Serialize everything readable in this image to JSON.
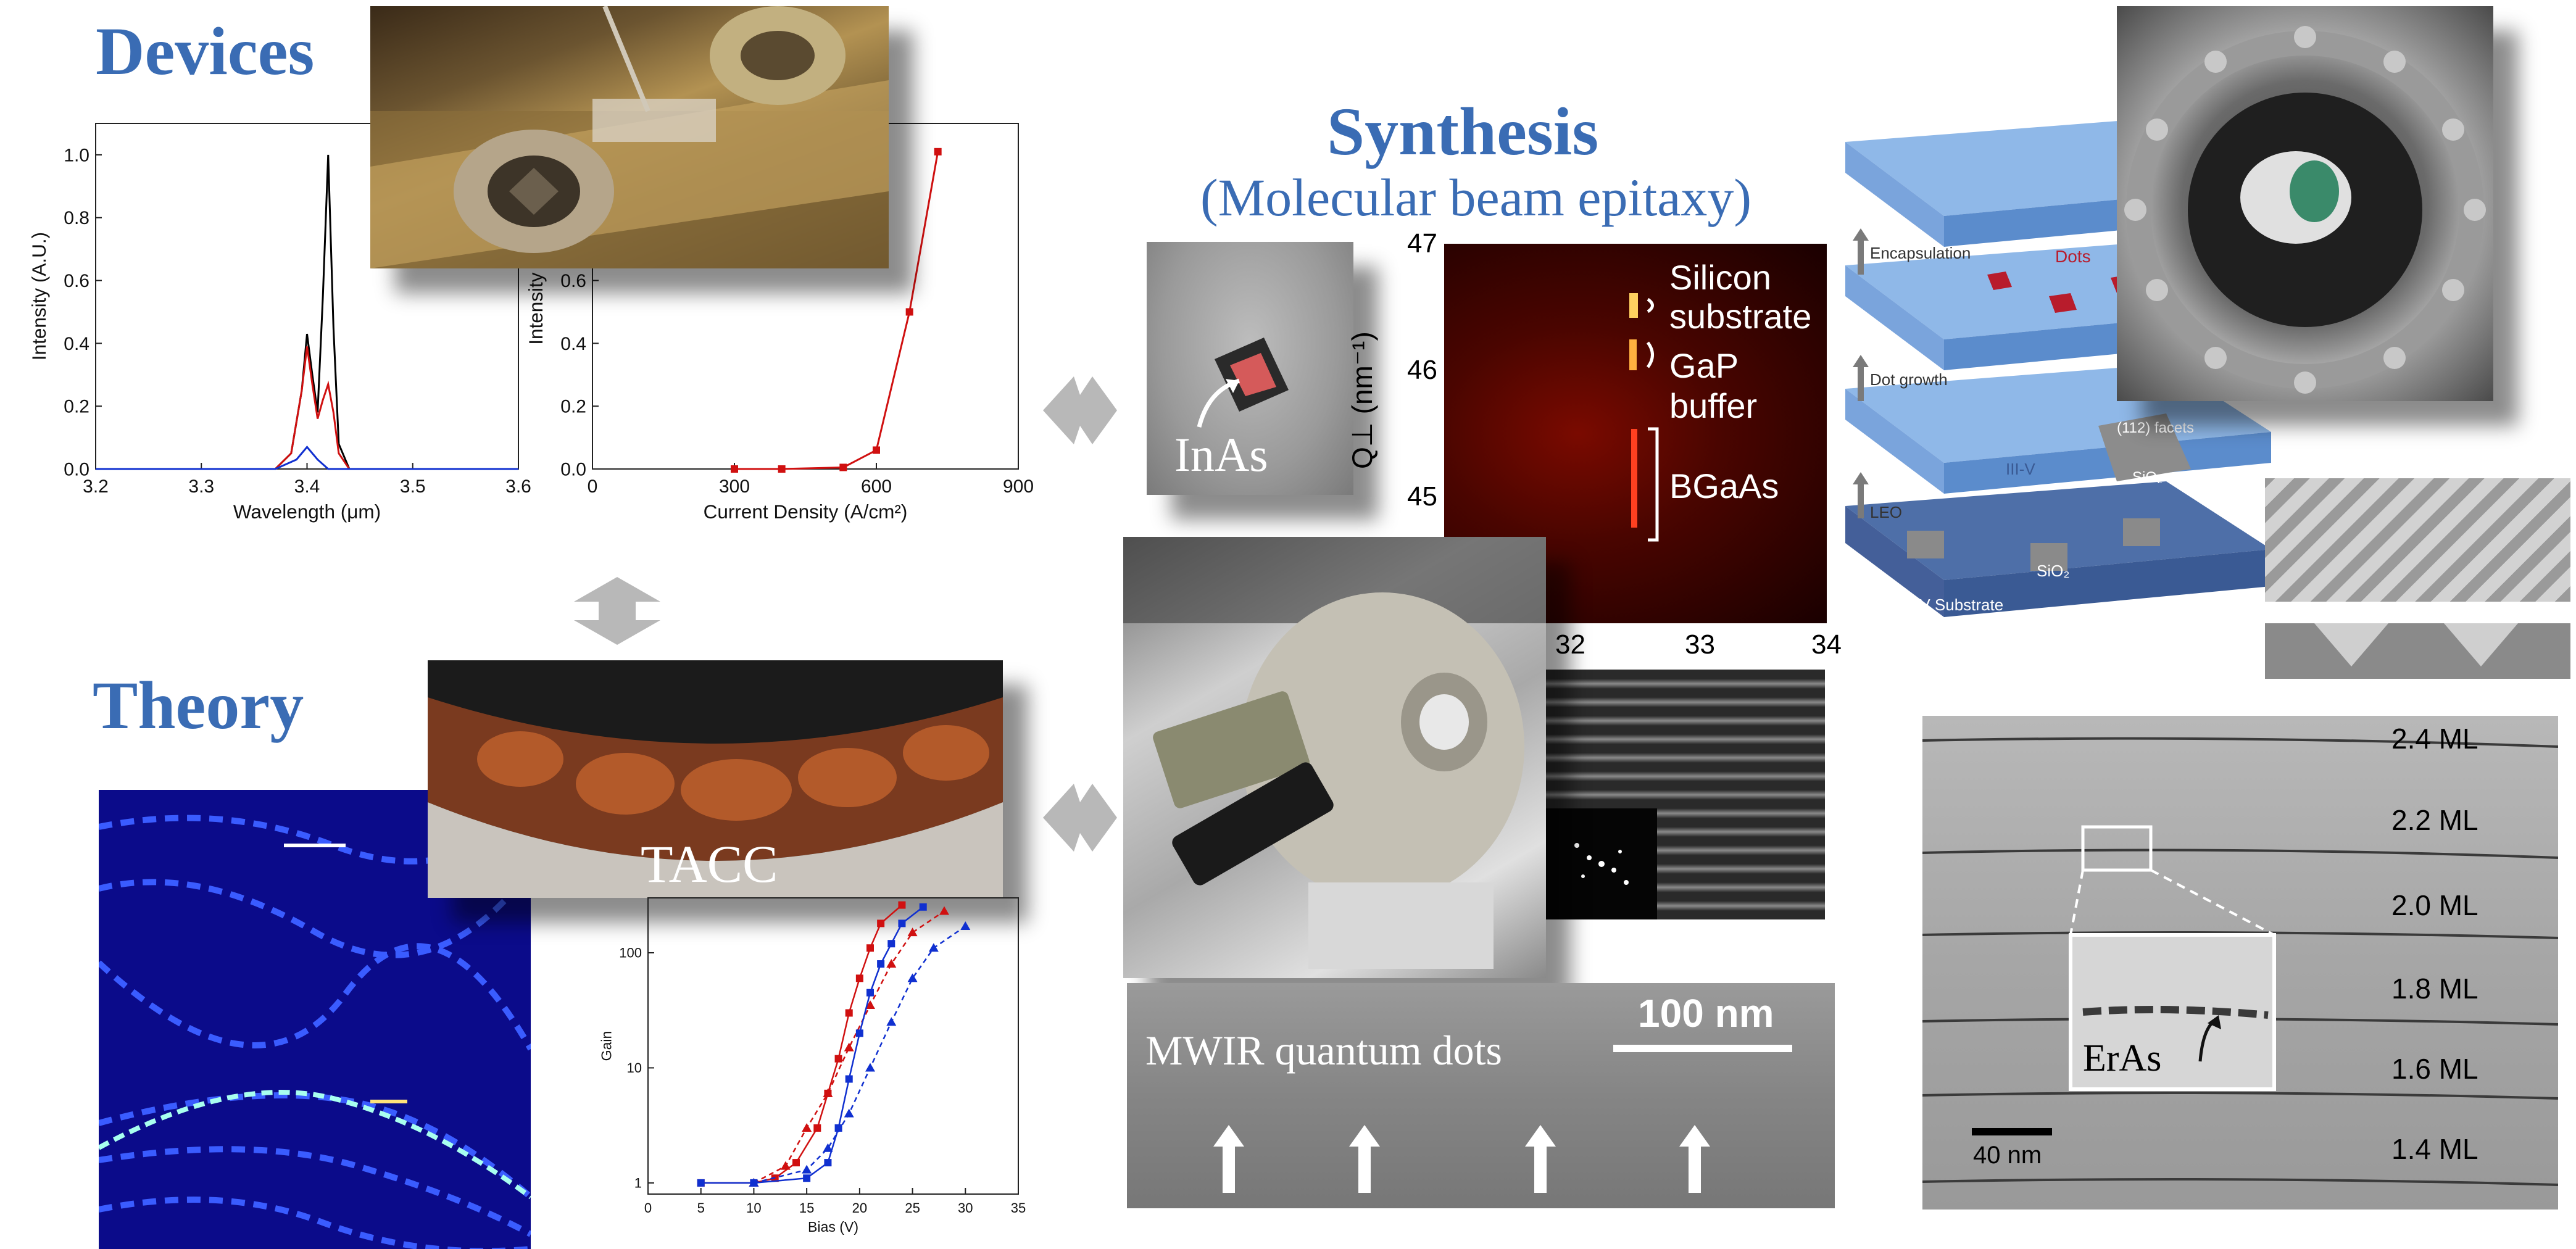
{
  "headings": {
    "devices": "Devices",
    "theory": "Theory",
    "synthesis": "Synthesis",
    "synthesis_sub": "(Molecular beam epitaxy)"
  },
  "labels": {
    "inas": "InAs",
    "tacc": "TACC",
    "mwir": "MWIR quantum dots",
    "scale_100nm": "100 nm",
    "scale_40nm": "40 nm",
    "eras": "ErAs",
    "rsm_silicon": "Silicon",
    "rsm_substrate": "substrate",
    "rsm_gap": "GaP",
    "rsm_buffer": "buffer",
    "rsm_bgaas": "BGaAs",
    "rsm_ylabel": "Q⊥ (nm⁻¹)",
    "rsm_yticks": [
      "47",
      "46",
      "45"
    ],
    "rsm_xticks": [
      "32",
      "33",
      "34"
    ],
    "ml_labels": [
      "2.4 ML",
      "2.2 ML",
      "2.0 ML",
      "1.8 ML",
      "1.6 ML",
      "1.4 ML"
    ],
    "growth": {
      "encapsulation": "Encapsulation",
      "dots": "Dots",
      "dot_growth": "Dot growth",
      "facets": "(112) facets",
      "sio2_a": "SiO₂",
      "iiiv": "III-V",
      "leo": "LEO",
      "sio2_b": "SiO₂",
      "substrate": "III-V Substrate"
    }
  },
  "chart_data": [
    {
      "type": "line",
      "xlabel": "Wavelength (μm)",
      "ylabel": "Intensity (A.U.)",
      "xlim": [
        3.2,
        3.6
      ],
      "ylim": [
        0,
        1.1
      ],
      "xticks": [
        "3.2",
        "3.3",
        "3.4",
        "3.5",
        "3.6"
      ],
      "yticks": [
        "0.0",
        "0.2",
        "0.4",
        "0.6",
        "0.8",
        "1.0"
      ],
      "series": [
        {
          "color": "#000000",
          "x": [
            3.2,
            3.37,
            3.385,
            3.395,
            3.4,
            3.405,
            3.41,
            3.415,
            3.42,
            3.425,
            3.43,
            3.44,
            3.6
          ],
          "y": [
            0,
            0.0,
            0.05,
            0.25,
            0.43,
            0.3,
            0.18,
            0.55,
            1.0,
            0.45,
            0.08,
            0.0,
            0
          ]
        },
        {
          "color": "#d01010",
          "x": [
            3.2,
            3.37,
            3.385,
            3.395,
            3.4,
            3.405,
            3.41,
            3.415,
            3.42,
            3.425,
            3.43,
            3.44,
            3.6
          ],
          "y": [
            0,
            0.0,
            0.05,
            0.25,
            0.39,
            0.27,
            0.16,
            0.22,
            0.27,
            0.18,
            0.05,
            0.0,
            0
          ]
        },
        {
          "color": "#1030d0",
          "x": [
            3.2,
            3.37,
            3.39,
            3.4,
            3.41,
            3.42,
            3.6
          ],
          "y": [
            0,
            0.0,
            0.03,
            0.07,
            0.03,
            0.0,
            0
          ]
        }
      ]
    },
    {
      "type": "line",
      "xlabel": "Current Density (A/cm²)",
      "ylabel": "Intensity (A",
      "xlim": [
        0,
        900
      ],
      "ylim": [
        0,
        1.1
      ],
      "xticks": [
        "0",
        "300",
        "600",
        "900"
      ],
      "yticks": [
        "0.0",
        "0.2",
        "0.4",
        "0.6"
      ],
      "series": [
        {
          "color": "#d01010",
          "x": [
            300,
            400,
            530,
            600,
            670,
            730
          ],
          "y": [
            0.0,
            0.0,
            0.005,
            0.06,
            0.5,
            1.01
          ]
        }
      ]
    },
    {
      "type": "line",
      "xlabel": "Bias (V)",
      "ylabel": "Gain",
      "xlim": [
        0,
        35
      ],
      "ylim_log": [
        0.8,
        300
      ],
      "yscale": "log",
      "xticks": [
        "0",
        "5",
        "10",
        "15",
        "20",
        "25",
        "30",
        "35"
      ],
      "yticks": [
        "1",
        "10",
        "100"
      ],
      "series": [
        {
          "color": "#d01010",
          "marker": "square",
          "x": [
            5,
            10,
            12,
            14,
            16,
            17,
            18,
            19,
            20,
            21,
            22,
            24
          ],
          "y": [
            1,
            1,
            1.1,
            1.5,
            3,
            6,
            12,
            30,
            60,
            110,
            180,
            260
          ]
        },
        {
          "color": "#d01010",
          "marker": "triangle",
          "x": [
            10,
            13,
            15,
            17,
            19,
            21,
            23,
            25,
            28
          ],
          "y": [
            1,
            1.4,
            3,
            6,
            15,
            35,
            80,
            150,
            230
          ]
        },
        {
          "color": "#1030d0",
          "marker": "square",
          "x": [
            5,
            10,
            15,
            17,
            18,
            19,
            20,
            21,
            22,
            23,
            24,
            26
          ],
          "y": [
            1,
            1,
            1.1,
            1.5,
            3,
            8,
            20,
            45,
            80,
            120,
            180,
            250
          ]
        },
        {
          "color": "#1030d0",
          "marker": "triangle",
          "x": [
            10,
            15,
            17,
            19,
            21,
            23,
            25,
            27,
            30
          ],
          "y": [
            1,
            1.3,
            2,
            4,
            10,
            25,
            60,
            110,
            170
          ]
        }
      ]
    }
  ]
}
